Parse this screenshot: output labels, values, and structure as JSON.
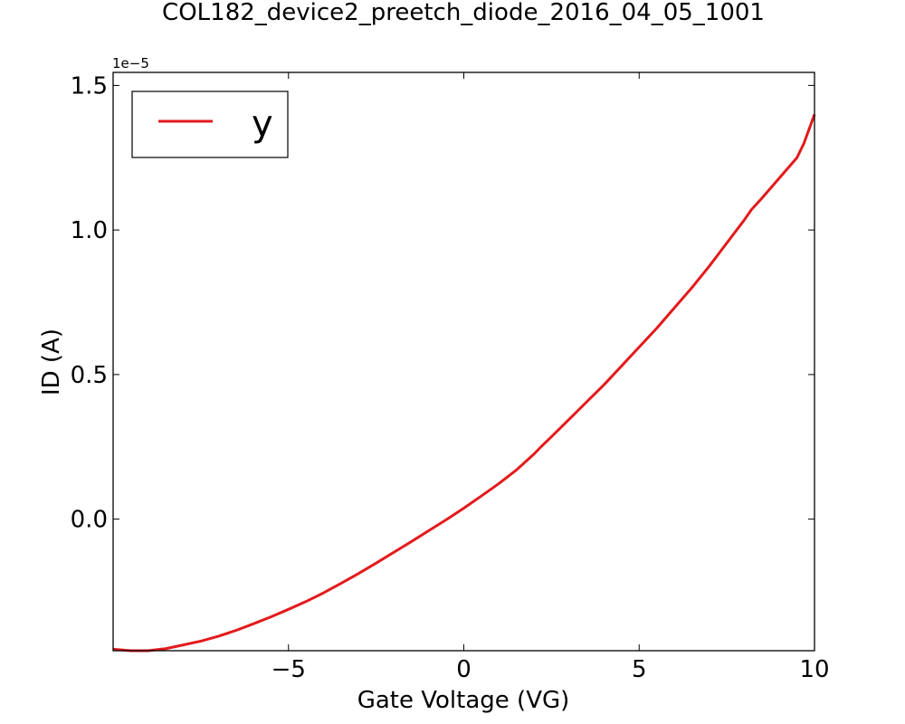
{
  "chart_data": {
    "type": "line",
    "title": "COL182_device2_preetch_diode_2016_04_05_1001",
    "xlabel": "Gate Voltage (VG)",
    "ylabel": "ID (A)",
    "xlim": [
      -10,
      10
    ],
    "ylim": [
      -4.55e-06,
      1.545e-05
    ],
    "y_offset_text": "1e−5",
    "x_ticks": [
      -5,
      0,
      5,
      10
    ],
    "x_tick_labels": [
      "−5",
      "0",
      "5",
      "10"
    ],
    "y_ticks": [
      0.0,
      5e-06,
      1e-05,
      1.5e-05
    ],
    "y_tick_labels": [
      "0.0",
      "0.5",
      "1.0",
      "1.5"
    ],
    "grid": false,
    "legend_position": "top-left",
    "series": [
      {
        "name": "y",
        "color": "#e31a1c",
        "x": [
          -10,
          -9.5,
          -9,
          -8.5,
          -8,
          -7.5,
          -7,
          -6.5,
          -6,
          -5.5,
          -5,
          -4.5,
          -4,
          -3.5,
          -3,
          -2.5,
          -2,
          -1.5,
          -1,
          -0.5,
          0,
          0.5,
          1,
          1.5,
          2,
          2.2,
          2.5,
          3,
          3.5,
          4,
          4.5,
          5,
          5.5,
          6,
          6.5,
          7,
          7.5,
          8,
          8.2,
          8.5,
          9,
          9.5,
          9.7,
          9.85,
          10
        ],
        "y": [
          -4.5e-06,
          -4.55e-06,
          -4.55e-06,
          -4.48e-06,
          -4.35e-06,
          -4.22e-06,
          -4.05e-06,
          -3.85e-06,
          -3.62e-06,
          -3.38e-06,
          -3.12e-06,
          -2.85e-06,
          -2.55e-06,
          -2.22e-06,
          -1.88e-06,
          -1.52e-06,
          -1.15e-06,
          -7.8e-07,
          -4e-07,
          -2e-08,
          3.8e-07,
          8e-07,
          1.23e-06,
          1.7e-06,
          2.25e-06,
          2.5e-06,
          2.85e-06,
          3.45e-06,
          4.05e-06,
          4.65e-06,
          5.3e-06,
          5.95e-06,
          6.6e-06,
          7.3e-06,
          8e-06,
          8.75e-06,
          9.55e-06,
          1.035e-05,
          1.07e-05,
          1.11e-05,
          1.18e-05,
          1.25e-05,
          1.3e-05,
          1.35e-05,
          1.4e-05
        ]
      }
    ]
  }
}
